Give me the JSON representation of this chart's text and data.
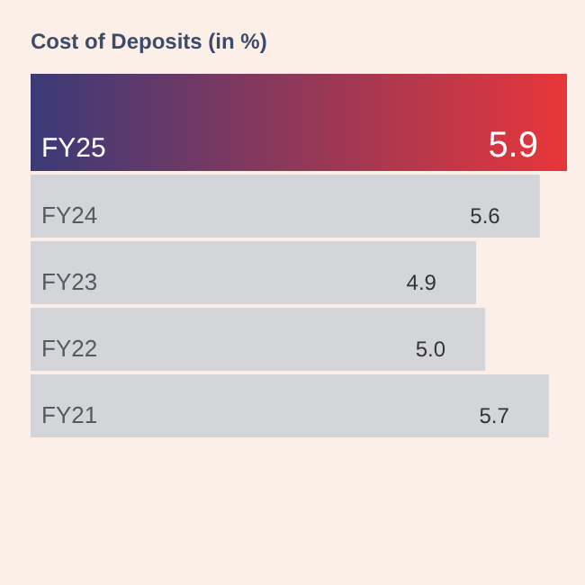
{
  "chart_data": {
    "type": "bar",
    "orientation": "horizontal",
    "title": "Cost of Deposits (in %)",
    "categories": [
      "FY25",
      "FY24",
      "FY23",
      "FY22",
      "FY21"
    ],
    "values": [
      5.9,
      5.6,
      4.9,
      5.0,
      5.7
    ],
    "colors": [
      "#e8363a",
      "#d3d5d8",
      "#d3d5d8",
      "#d3d5d8",
      "#d3d5d8"
    ],
    "value_labels": [
      "5.9",
      "5.6",
      "4.9",
      "5.0",
      "5.7"
    ]
  }
}
